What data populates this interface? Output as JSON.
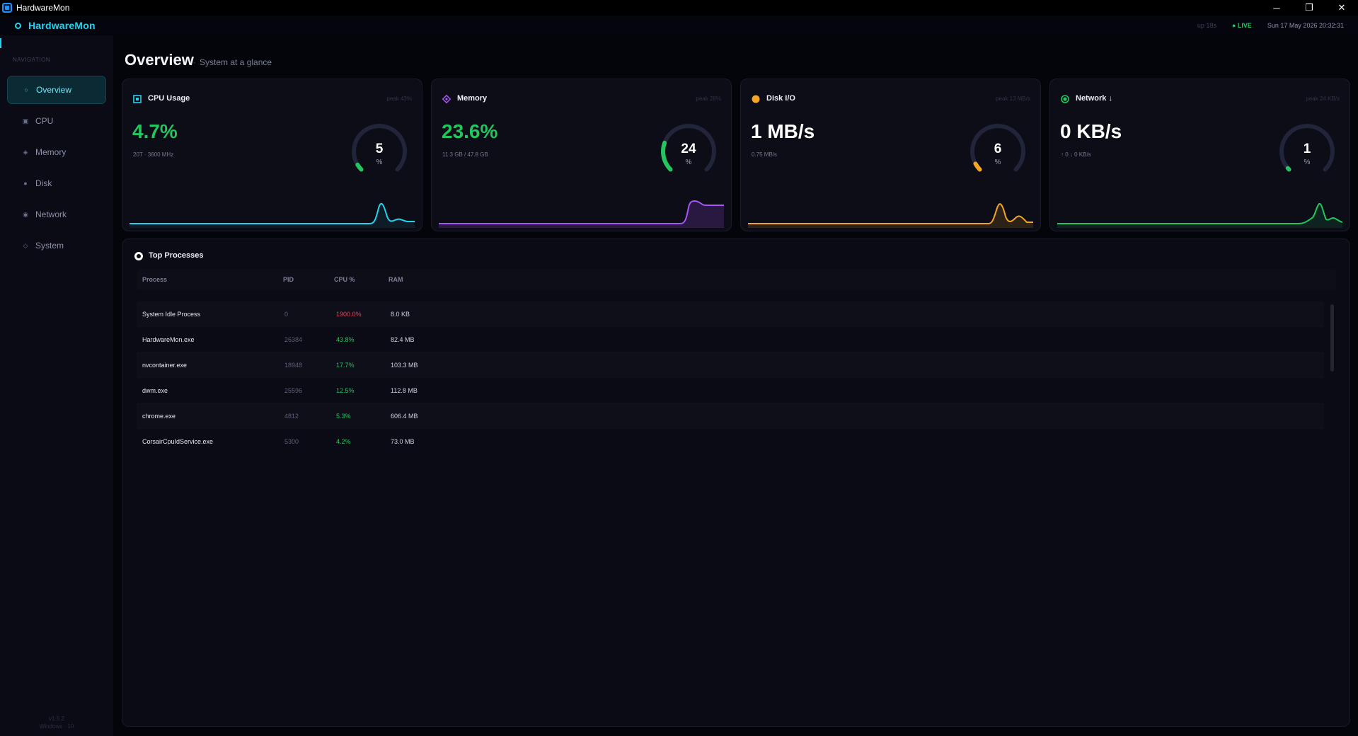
{
  "window": {
    "title": "HardwareMon",
    "controls": {
      "minimize": "─",
      "restore": "❐",
      "close": "✕"
    }
  },
  "header": {
    "brand": "HardwareMon",
    "uptime": "up 18s",
    "live": "● LIVE",
    "datetime": "Sun 17 May 2026  20:32:31"
  },
  "sidebar": {
    "heading": "NAVIGATION",
    "items": [
      {
        "label": "Overview",
        "icon": "○",
        "icon_name": "overview-icon",
        "active": true
      },
      {
        "label": "CPU",
        "icon": "▣",
        "icon_name": "cpu-icon"
      },
      {
        "label": "Memory",
        "icon": "◈",
        "icon_name": "memory-icon"
      },
      {
        "label": "Disk",
        "icon": "●",
        "icon_name": "disk-icon"
      },
      {
        "label": "Network",
        "icon": "◉",
        "icon_name": "network-icon"
      },
      {
        "label": "System",
        "icon": "◇",
        "icon_name": "system-icon"
      }
    ],
    "version": "v1.5.2",
    "os": "Windows · 10"
  },
  "page": {
    "title": "Overview",
    "subtitle": "System at a glance"
  },
  "cards": {
    "cpu": {
      "title": "CPU Usage",
      "peak": "peak 43%",
      "value": "4.7%",
      "sub": "20T · 3600 MHz",
      "gauge_value": "5",
      "gauge_unit": "%",
      "gauge_percent": 5,
      "color": "#22d3ee",
      "value_color": "#22c55e",
      "gauge_color": "#22c55e"
    },
    "memory": {
      "title": "Memory",
      "peak": "peak 28%",
      "value": "23.6%",
      "sub": "11.3 GB / 47.8 GB",
      "gauge_value": "24",
      "gauge_unit": "%",
      "gauge_percent": 24,
      "color": "#a855f7",
      "value_color": "#22c55e",
      "gauge_color": "#22c55e"
    },
    "disk": {
      "title": "Disk I/O",
      "peak": "peak 13 MB/s",
      "value": "1 MB/s",
      "sub": "0.75 MB/s",
      "gauge_value": "6",
      "gauge_unit": "%",
      "gauge_percent": 6,
      "color": "#f5a524",
      "value_color": "#ffffff",
      "gauge_color": "#f5a524"
    },
    "network": {
      "title": "Network ↓",
      "peak": "peak 24 KB/s",
      "value": "0 KB/s",
      "sub": "↑ 0   ↓ 0 KB/s",
      "gauge_value": "1",
      "gauge_unit": "%",
      "gauge_percent": 1,
      "color": "#22c55e",
      "value_color": "#ffffff",
      "gauge_color": "#22c55e"
    }
  },
  "processes": {
    "title": "Top Processes",
    "columns": [
      "Process",
      "PID",
      "CPU %",
      "RAM"
    ],
    "rows": [
      {
        "name": "System Idle Process",
        "pid": "0",
        "cpu": "1900.0%",
        "ram": "8.0 KB",
        "cpu_color": "#f43f5e"
      },
      {
        "name": "HardwareMon.exe",
        "pid": "26384",
        "cpu": "43.8%",
        "ram": "82.4 MB",
        "cpu_color": "#22c55e"
      },
      {
        "name": "nvcontainer.exe",
        "pid": "18948",
        "cpu": "17.7%",
        "ram": "103.3 MB",
        "cpu_color": "#22c55e"
      },
      {
        "name": "dwm.exe",
        "pid": "25596",
        "cpu": "12.5%",
        "ram": "112.8 MB",
        "cpu_color": "#22c55e"
      },
      {
        "name": "chrome.exe",
        "pid": "4812",
        "cpu": "5.3%",
        "ram": "606.4 MB",
        "cpu_color": "#22c55e"
      },
      {
        "name": "CorsairCpuIdService.exe",
        "pid": "5300",
        "cpu": "4.2%",
        "ram": "73.0 MB",
        "cpu_color": "#22c55e"
      }
    ]
  }
}
